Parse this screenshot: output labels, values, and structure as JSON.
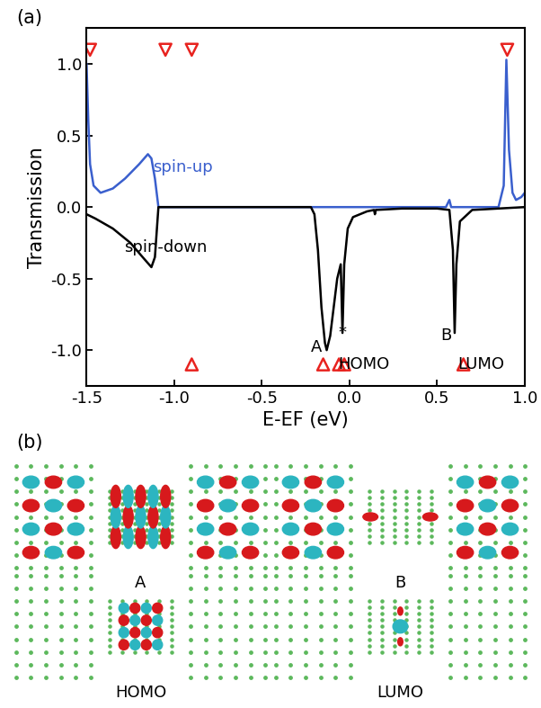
{
  "chart_data": {
    "type": "line",
    "panel_label": "(a)",
    "x_label": "E-EF (eV)",
    "y_label": "Transmission",
    "xlim": [
      -1.5,
      1.0
    ],
    "xticks": [
      -1.5,
      -1.0,
      -0.5,
      0.0,
      0.5,
      1.0
    ],
    "ylim": [
      -1.25,
      1.25
    ],
    "yticks": [
      -1.0,
      -0.5,
      0.0,
      0.5,
      1.0
    ],
    "series": [
      {
        "name": "spin-up",
        "type": "line",
        "color": "#3a5fcd",
        "x": [
          -1.5,
          -1.49,
          -1.48,
          -1.46,
          -1.42,
          -1.35,
          -1.28,
          -1.2,
          -1.15,
          -1.13,
          -1.11,
          -1.09,
          -0.5,
          0.0,
          0.55,
          0.57,
          0.58,
          0.85,
          0.88,
          0.895,
          0.91,
          0.93,
          0.95,
          0.98,
          1.0
        ],
        "values": [
          1.0,
          0.6,
          0.3,
          0.15,
          0.1,
          0.13,
          0.2,
          0.3,
          0.37,
          0.34,
          0.2,
          0.0,
          0.0,
          0.0,
          0.0,
          0.05,
          0.0,
          0.0,
          0.15,
          1.03,
          0.4,
          0.1,
          0.05,
          0.07,
          0.1
        ]
      },
      {
        "name": "spin-down",
        "type": "line",
        "color": "#000000",
        "x": [
          -1.5,
          -1.45,
          -1.35,
          -1.25,
          -1.18,
          -1.13,
          -1.11,
          -1.09,
          -0.22,
          -0.2,
          -0.18,
          -0.16,
          -0.14,
          -0.13,
          -0.11,
          -0.09,
          -0.07,
          -0.05,
          -0.04,
          -0.03,
          -0.01,
          0.02,
          0.1,
          0.14,
          0.145,
          0.15,
          0.3,
          0.5,
          0.57,
          0.59,
          0.6,
          0.61,
          0.63,
          0.7,
          1.0
        ],
        "values": [
          -0.05,
          -0.08,
          -0.15,
          -0.25,
          -0.35,
          -0.42,
          -0.35,
          0.0,
          0.0,
          -0.05,
          -0.3,
          -0.7,
          -0.95,
          -1.0,
          -0.9,
          -0.7,
          -0.5,
          -0.4,
          -0.88,
          -0.4,
          -0.15,
          -0.07,
          -0.03,
          -0.02,
          -0.05,
          -0.02,
          -0.01,
          -0.01,
          -0.02,
          -0.3,
          -0.88,
          -0.4,
          -0.1,
          -0.02,
          0.0
        ]
      },
      {
        "type": "scatter",
        "marker": "triangle_down",
        "color": "#e8231f",
        "x": [
          -1.48,
          -1.05,
          -0.9,
          0.9
        ],
        "values": [
          1.1,
          1.1,
          1.1,
          1.1
        ]
      },
      {
        "type": "scatter",
        "marker": "triangle_up",
        "color": "#e8231f",
        "x": [
          -0.9,
          -0.15,
          -0.06,
          -0.03,
          0.65
        ],
        "values": [
          -1.1,
          -1.1,
          -1.1,
          -1.1,
          -1.1
        ]
      }
    ],
    "annotations": [
      {
        "text": "spin-up",
        "x": -0.95,
        "y": 0.28,
        "color": "#3a5fcd"
      },
      {
        "text": "spin-down",
        "x": -1.05,
        "y": -0.28,
        "color": "#000000"
      },
      {
        "text": "A",
        "x": -0.19,
        "y": -0.98,
        "color": "#000000"
      },
      {
        "text": "*",
        "x": -0.04,
        "y": -0.88,
        "color": "#000000"
      },
      {
        "text": "B",
        "x": 0.55,
        "y": -0.9,
        "color": "#000000"
      },
      {
        "text": "HOMO",
        "x": 0.08,
        "y": -1.1,
        "color": "#000000"
      },
      {
        "text": "LUMO",
        "x": 0.75,
        "y": -1.1,
        "color": "#000000"
      }
    ]
  },
  "panel_b": {
    "panel_label": "(b)",
    "images": [
      "A",
      "B",
      "HOMO",
      "LUMO"
    ]
  }
}
